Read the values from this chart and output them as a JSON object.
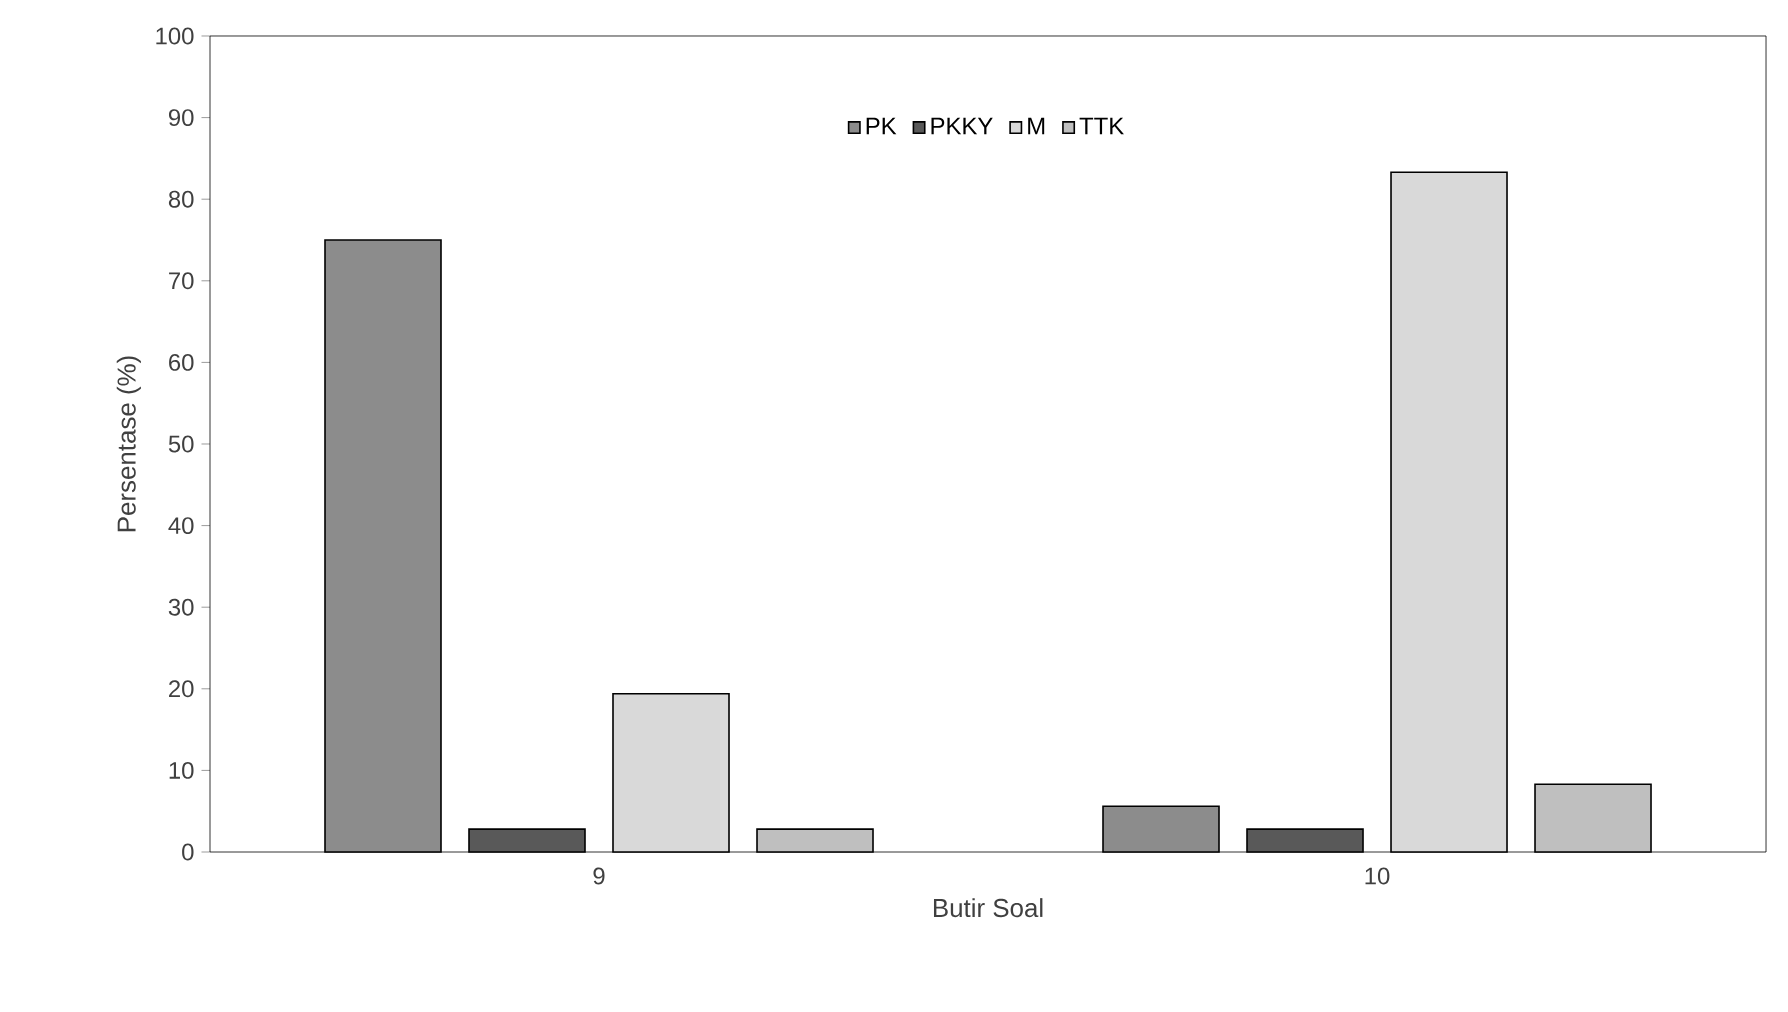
{
  "chart_data": {
    "type": "bar",
    "xlabel": "Butir Soal",
    "ylabel": "Persentase (%)",
    "categories": [
      "9",
      "10"
    ],
    "series": [
      {
        "name": "PK",
        "color": "#8c8c8c",
        "values": [
          75,
          5.6
        ]
      },
      {
        "name": "PKKY",
        "color": "#595959",
        "values": [
          2.8,
          2.8
        ]
      },
      {
        "name": "M",
        "color": "#d9d9d9",
        "values": [
          19.4,
          83.3
        ]
      },
      {
        "name": "TTK",
        "color": "#bfbfbf",
        "values": [
          2.8,
          8.3
        ]
      }
    ],
    "ylim": [
      0,
      100
    ],
    "yticks": [
      0,
      10,
      20,
      30,
      40,
      50,
      60,
      70,
      80,
      90,
      100
    ],
    "grid": false,
    "legend": "top"
  }
}
